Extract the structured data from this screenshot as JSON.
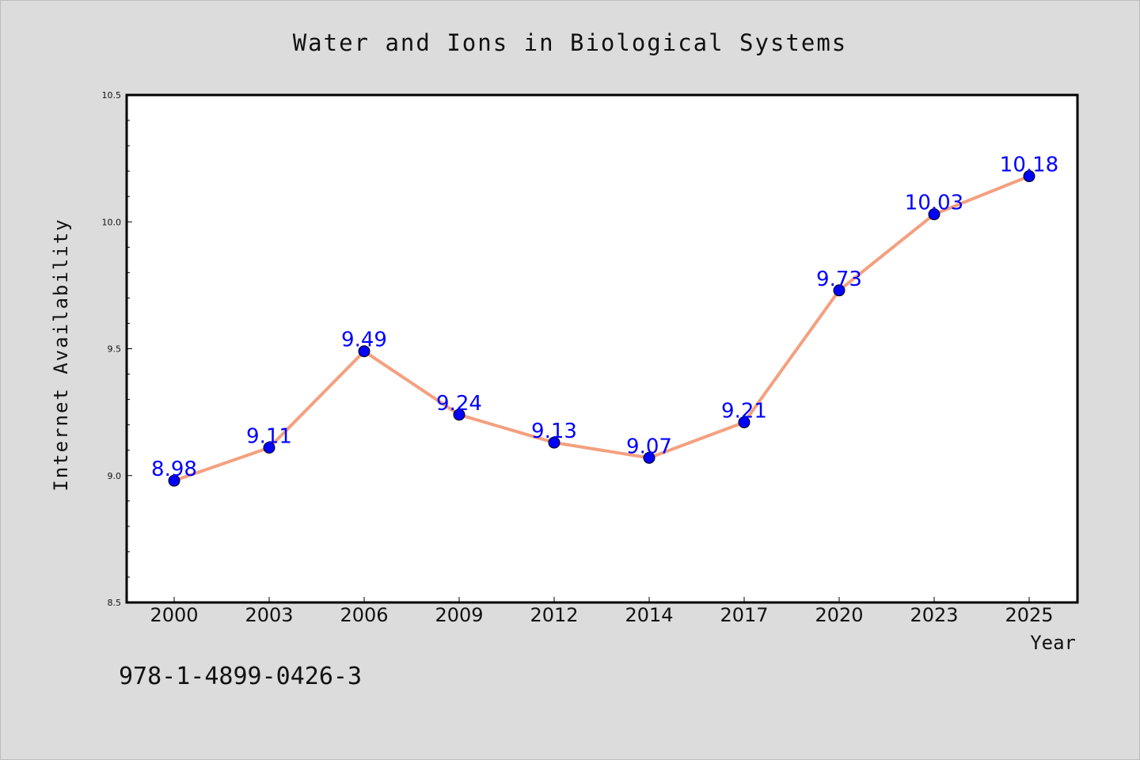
{
  "chart_data": {
    "type": "line",
    "title": "Water and Ions in Biological Systems",
    "xlabel": "Year",
    "ylabel": "Internet Availability",
    "categories": [
      "2000",
      "2003",
      "2006",
      "2009",
      "2012",
      "2014",
      "2017",
      "2020",
      "2023",
      "2025"
    ],
    "series": [
      {
        "values": [
          8.98,
          9.11,
          9.49,
          9.24,
          9.13,
          9.07,
          9.21,
          9.73,
          10.03,
          10.18
        ],
        "line_color": "#f4a07f",
        "marker_color": "#0000ff"
      }
    ],
    "data_labels": [
      "8.98",
      "9.11",
      "9.49",
      "9.24",
      "9.13",
      "9.07",
      "9.21",
      "9.73",
      "10.03",
      "10.18"
    ],
    "ylim": [
      8.5,
      10.5
    ],
    "yticks": [
      "8.5",
      "9.0",
      "9.5",
      "10.0",
      "10.5"
    ],
    "grid": false,
    "legend": "none"
  },
  "annotation": "978-1-4899-0426-3",
  "colors": {
    "background": "#dcdcdc",
    "plot_background": "#ffffff",
    "axis": "#000000",
    "line": "#f4a07f",
    "marker": "#0000ff",
    "data_label": "#0000ff"
  }
}
